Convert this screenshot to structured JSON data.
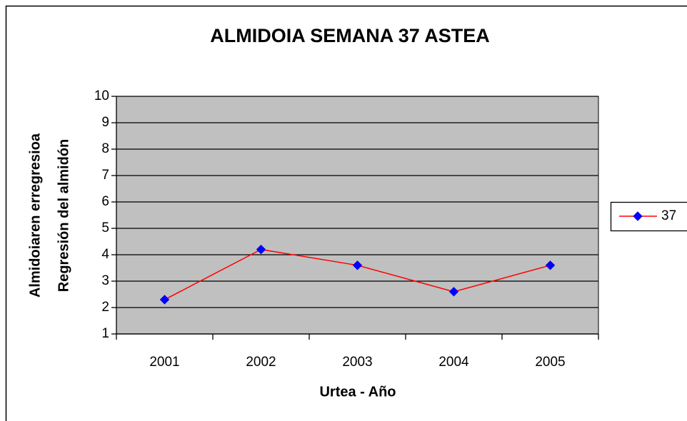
{
  "chart_data": {
    "type": "line",
    "title": "ALMIDOIA  SEMANA 37 ASTEA",
    "x_label": "Urtea - Año",
    "y_label": [
      "Almidoiaren erregresioa",
      "Regresión del almidón"
    ],
    "categories": [
      "2001",
      "2002",
      "2003",
      "2004",
      "2005"
    ],
    "series": [
      {
        "name": "37",
        "color": "#ff0000",
        "marker_color": "#0000ff",
        "values": [
          2.3,
          4.2,
          3.6,
          2.6,
          3.6
        ]
      }
    ],
    "ylim": [
      1,
      10
    ],
    "yticks": [
      1,
      2,
      3,
      4,
      5,
      6,
      7,
      8,
      9,
      10
    ],
    "grid": true,
    "plot_background": "#c0c0c0",
    "legend": "right"
  }
}
